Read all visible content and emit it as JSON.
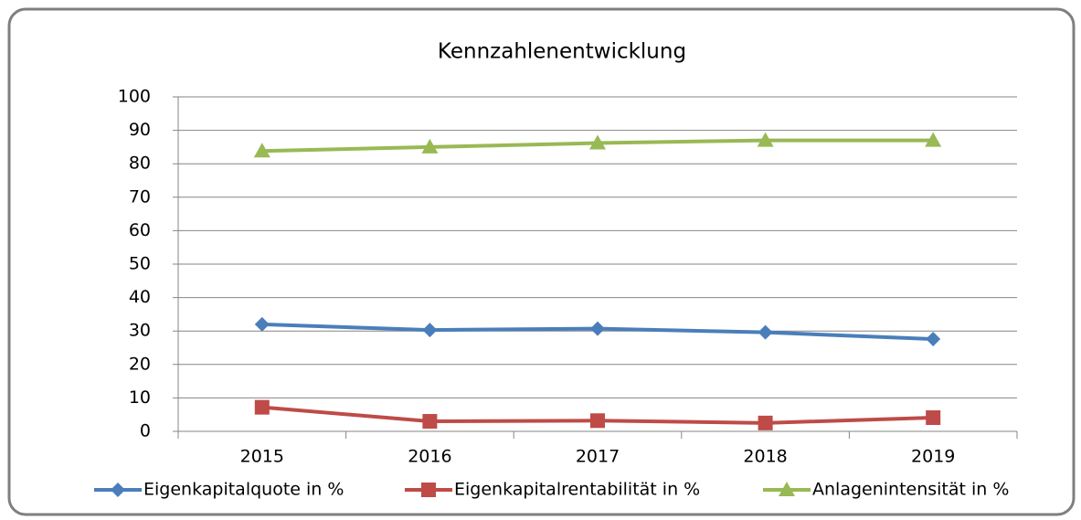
{
  "chart_data": {
    "type": "line",
    "title": "Kennzahlenentwicklung",
    "categories": [
      "2015",
      "2016",
      "2017",
      "2018",
      "2019"
    ],
    "series": [
      {
        "name": "Eigenkapitalquote in %",
        "color": "#4a7ebb",
        "marker": "diamond",
        "values": [
          32,
          30.3,
          30.7,
          29.6,
          27.6
        ]
      },
      {
        "name": "Eigenkapitalrentabilität in %",
        "color": "#be4b48",
        "marker": "square",
        "values": [
          7.2,
          3,
          3.2,
          2.5,
          4.1
        ]
      },
      {
        "name": "Anlagenintensität in %",
        "color": "#98b954",
        "marker": "triangle",
        "values": [
          83.8,
          85,
          86.2,
          87,
          87
        ]
      }
    ],
    "ylim": [
      0,
      100
    ],
    "yticks": [
      0,
      10,
      20,
      30,
      40,
      50,
      60,
      70,
      80,
      90,
      100
    ],
    "grid": true,
    "legend": "bottom"
  }
}
